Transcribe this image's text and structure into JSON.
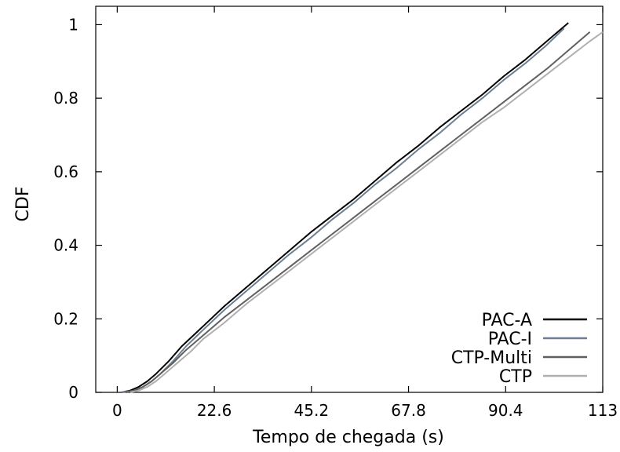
{
  "chart_data": {
    "type": "line",
    "title": "",
    "xlabel": "Tempo de chegada (s)",
    "ylabel": "CDF",
    "xlim": [
      -5,
      113
    ],
    "ylim": [
      0,
      1.05
    ],
    "xticks": [
      0,
      22.6,
      45.2,
      67.8,
      90.4,
      113
    ],
    "xtick_labels": [
      "0",
      "22.6",
      "45.2",
      "67.8",
      "90.4",
      "113"
    ],
    "yticks": [
      0,
      0.2,
      0.4,
      0.6,
      0.8,
      1
    ],
    "ytick_labels": [
      "0",
      "0.2",
      "0.4",
      "0.6",
      "0.8",
      "1"
    ],
    "grid": false,
    "legend_position": "bottom-right",
    "series": [
      {
        "name": "PAC-A",
        "color": "#000000",
        "points": [
          [
            1,
            0.0
          ],
          [
            3,
            0.005
          ],
          [
            5,
            0.015
          ],
          [
            7,
            0.03
          ],
          [
            9,
            0.05
          ],
          [
            12,
            0.085
          ],
          [
            15,
            0.125
          ],
          [
            20,
            0.18
          ],
          [
            25,
            0.235
          ],
          [
            30,
            0.285
          ],
          [
            35,
            0.335
          ],
          [
            40,
            0.385
          ],
          [
            45,
            0.435
          ],
          [
            50,
            0.48
          ],
          [
            55,
            0.525
          ],
          [
            60,
            0.575
          ],
          [
            65,
            0.625
          ],
          [
            70,
            0.67
          ],
          [
            75,
            0.72
          ],
          [
            80,
            0.765
          ],
          [
            85,
            0.81
          ],
          [
            90,
            0.86
          ],
          [
            95,
            0.905
          ],
          [
            100,
            0.955
          ],
          [
            105,
            1.005
          ]
        ]
      },
      {
        "name": "PAC-I",
        "color": "#6e7f93",
        "points": [
          [
            1,
            0.0
          ],
          [
            4,
            0.005
          ],
          [
            6,
            0.015
          ],
          [
            8,
            0.03
          ],
          [
            10,
            0.05
          ],
          [
            13,
            0.085
          ],
          [
            16,
            0.125
          ],
          [
            20,
            0.17
          ],
          [
            25,
            0.225
          ],
          [
            30,
            0.275
          ],
          [
            35,
            0.325
          ],
          [
            40,
            0.375
          ],
          [
            45,
            0.42
          ],
          [
            50,
            0.47
          ],
          [
            55,
            0.515
          ],
          [
            60,
            0.565
          ],
          [
            65,
            0.61
          ],
          [
            70,
            0.66
          ],
          [
            75,
            0.705
          ],
          [
            80,
            0.755
          ],
          [
            85,
            0.8
          ],
          [
            90,
            0.85
          ],
          [
            95,
            0.895
          ],
          [
            100,
            0.945
          ],
          [
            104,
            0.99
          ]
        ]
      },
      {
        "name": "CTP-Multi",
        "color": "#606060",
        "points": [
          [
            2,
            0.0
          ],
          [
            4,
            0.005
          ],
          [
            6,
            0.015
          ],
          [
            8,
            0.03
          ],
          [
            10,
            0.05
          ],
          [
            13,
            0.08
          ],
          [
            16,
            0.115
          ],
          [
            20,
            0.155
          ],
          [
            25,
            0.205
          ],
          [
            30,
            0.25
          ],
          [
            35,
            0.295
          ],
          [
            40,
            0.34
          ],
          [
            45,
            0.385
          ],
          [
            50,
            0.43
          ],
          [
            55,
            0.475
          ],
          [
            60,
            0.52
          ],
          [
            65,
            0.565
          ],
          [
            70,
            0.61
          ],
          [
            75,
            0.655
          ],
          [
            80,
            0.7
          ],
          [
            85,
            0.745
          ],
          [
            90,
            0.79
          ],
          [
            95,
            0.835
          ],
          [
            100,
            0.88
          ],
          [
            105,
            0.93
          ],
          [
            110,
            0.98
          ]
        ]
      },
      {
        "name": "CTP",
        "color": "#b0b0b0",
        "points": [
          [
            3,
            0.0
          ],
          [
            5,
            0.005
          ],
          [
            7,
            0.015
          ],
          [
            9,
            0.03
          ],
          [
            11,
            0.05
          ],
          [
            14,
            0.08
          ],
          [
            17,
            0.11
          ],
          [
            20,
            0.145
          ],
          [
            25,
            0.19
          ],
          [
            30,
            0.24
          ],
          [
            35,
            0.285
          ],
          [
            40,
            0.33
          ],
          [
            45,
            0.375
          ],
          [
            50,
            0.42
          ],
          [
            55,
            0.465
          ],
          [
            60,
            0.51
          ],
          [
            65,
            0.555
          ],
          [
            70,
            0.6
          ],
          [
            75,
            0.645
          ],
          [
            80,
            0.69
          ],
          [
            85,
            0.735
          ],
          [
            90,
            0.775
          ],
          [
            95,
            0.82
          ],
          [
            100,
            0.865
          ],
          [
            105,
            0.91
          ],
          [
            110,
            0.955
          ],
          [
            113,
            0.98
          ]
        ]
      }
    ]
  }
}
